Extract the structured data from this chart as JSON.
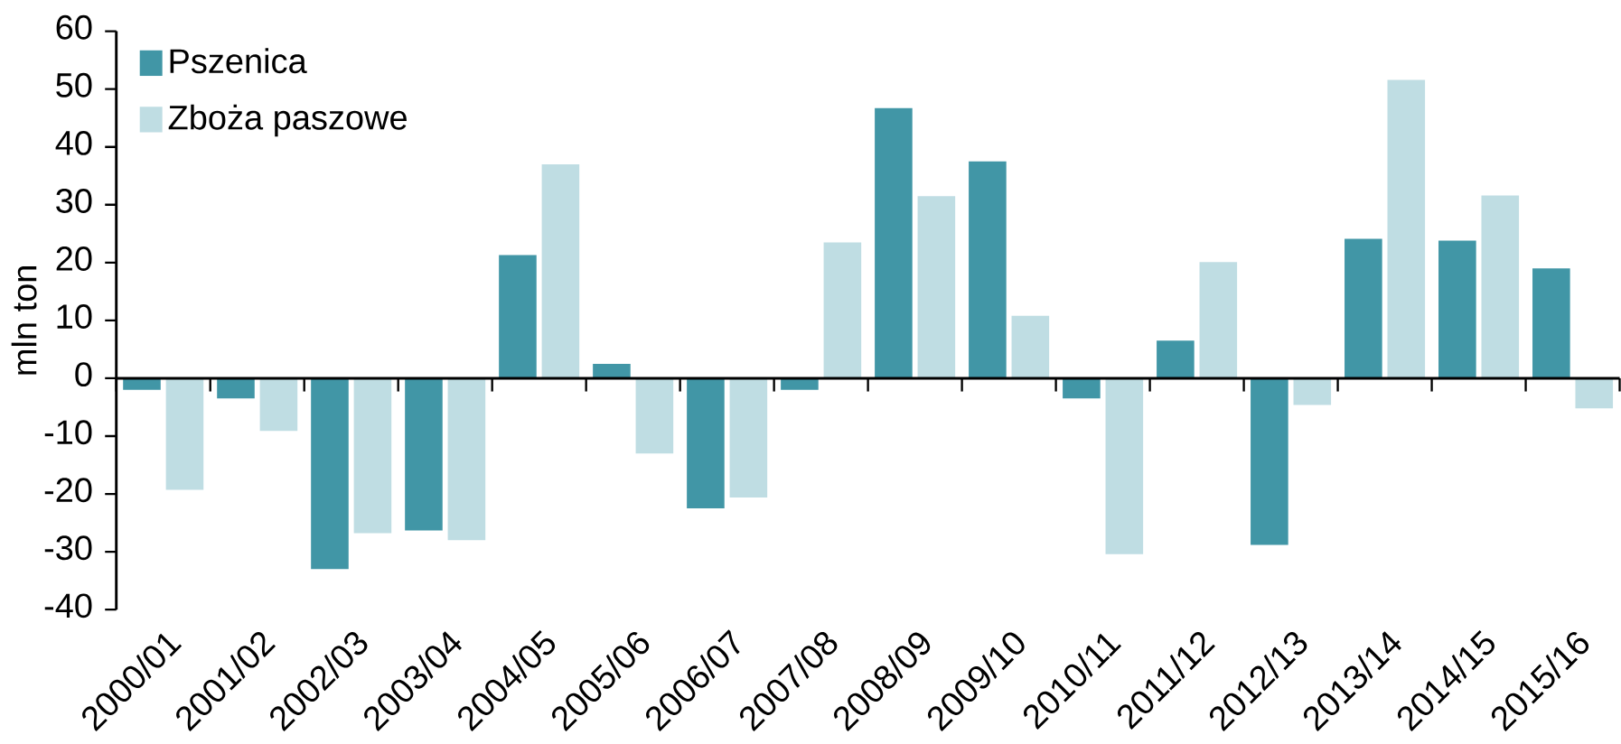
{
  "chart_data": {
    "type": "bar",
    "ylabel": "mln ton",
    "categories": [
      "2000/01",
      "2001/02",
      "2002/03",
      "2003/04",
      "2004/05",
      "2005/06",
      "2006/07",
      "2007/08",
      "2008/09",
      "2009/10",
      "2010/11",
      "2011/12",
      "2012/13",
      "2013/14",
      "2014/15",
      "2015/16"
    ],
    "series": [
      {
        "name": "Pszenica",
        "color": "#4196a6",
        "values": [
          -2.0,
          -3.5,
          -33,
          -26.3,
          21.3,
          2.5,
          -22.5,
          -2.0,
          46.7,
          37.5,
          -3.5,
          6.5,
          -28.8,
          24.1,
          23.8,
          19
        ]
      },
      {
        "name": "Zboża paszowe",
        "color": "#bfdde3",
        "values": [
          -19.3,
          -9.1,
          -26.8,
          -28,
          37,
          -13,
          -20.6,
          23.5,
          31.5,
          10.8,
          -30.4,
          20.1,
          -4.6,
          51.6,
          31.6,
          -5.2
        ]
      }
    ],
    "ylim": [
      -40,
      60
    ],
    "yticks": [
      -40,
      -30,
      -20,
      -10,
      0,
      10,
      20,
      30,
      40,
      50,
      60
    ],
    "legend": "top left"
  }
}
